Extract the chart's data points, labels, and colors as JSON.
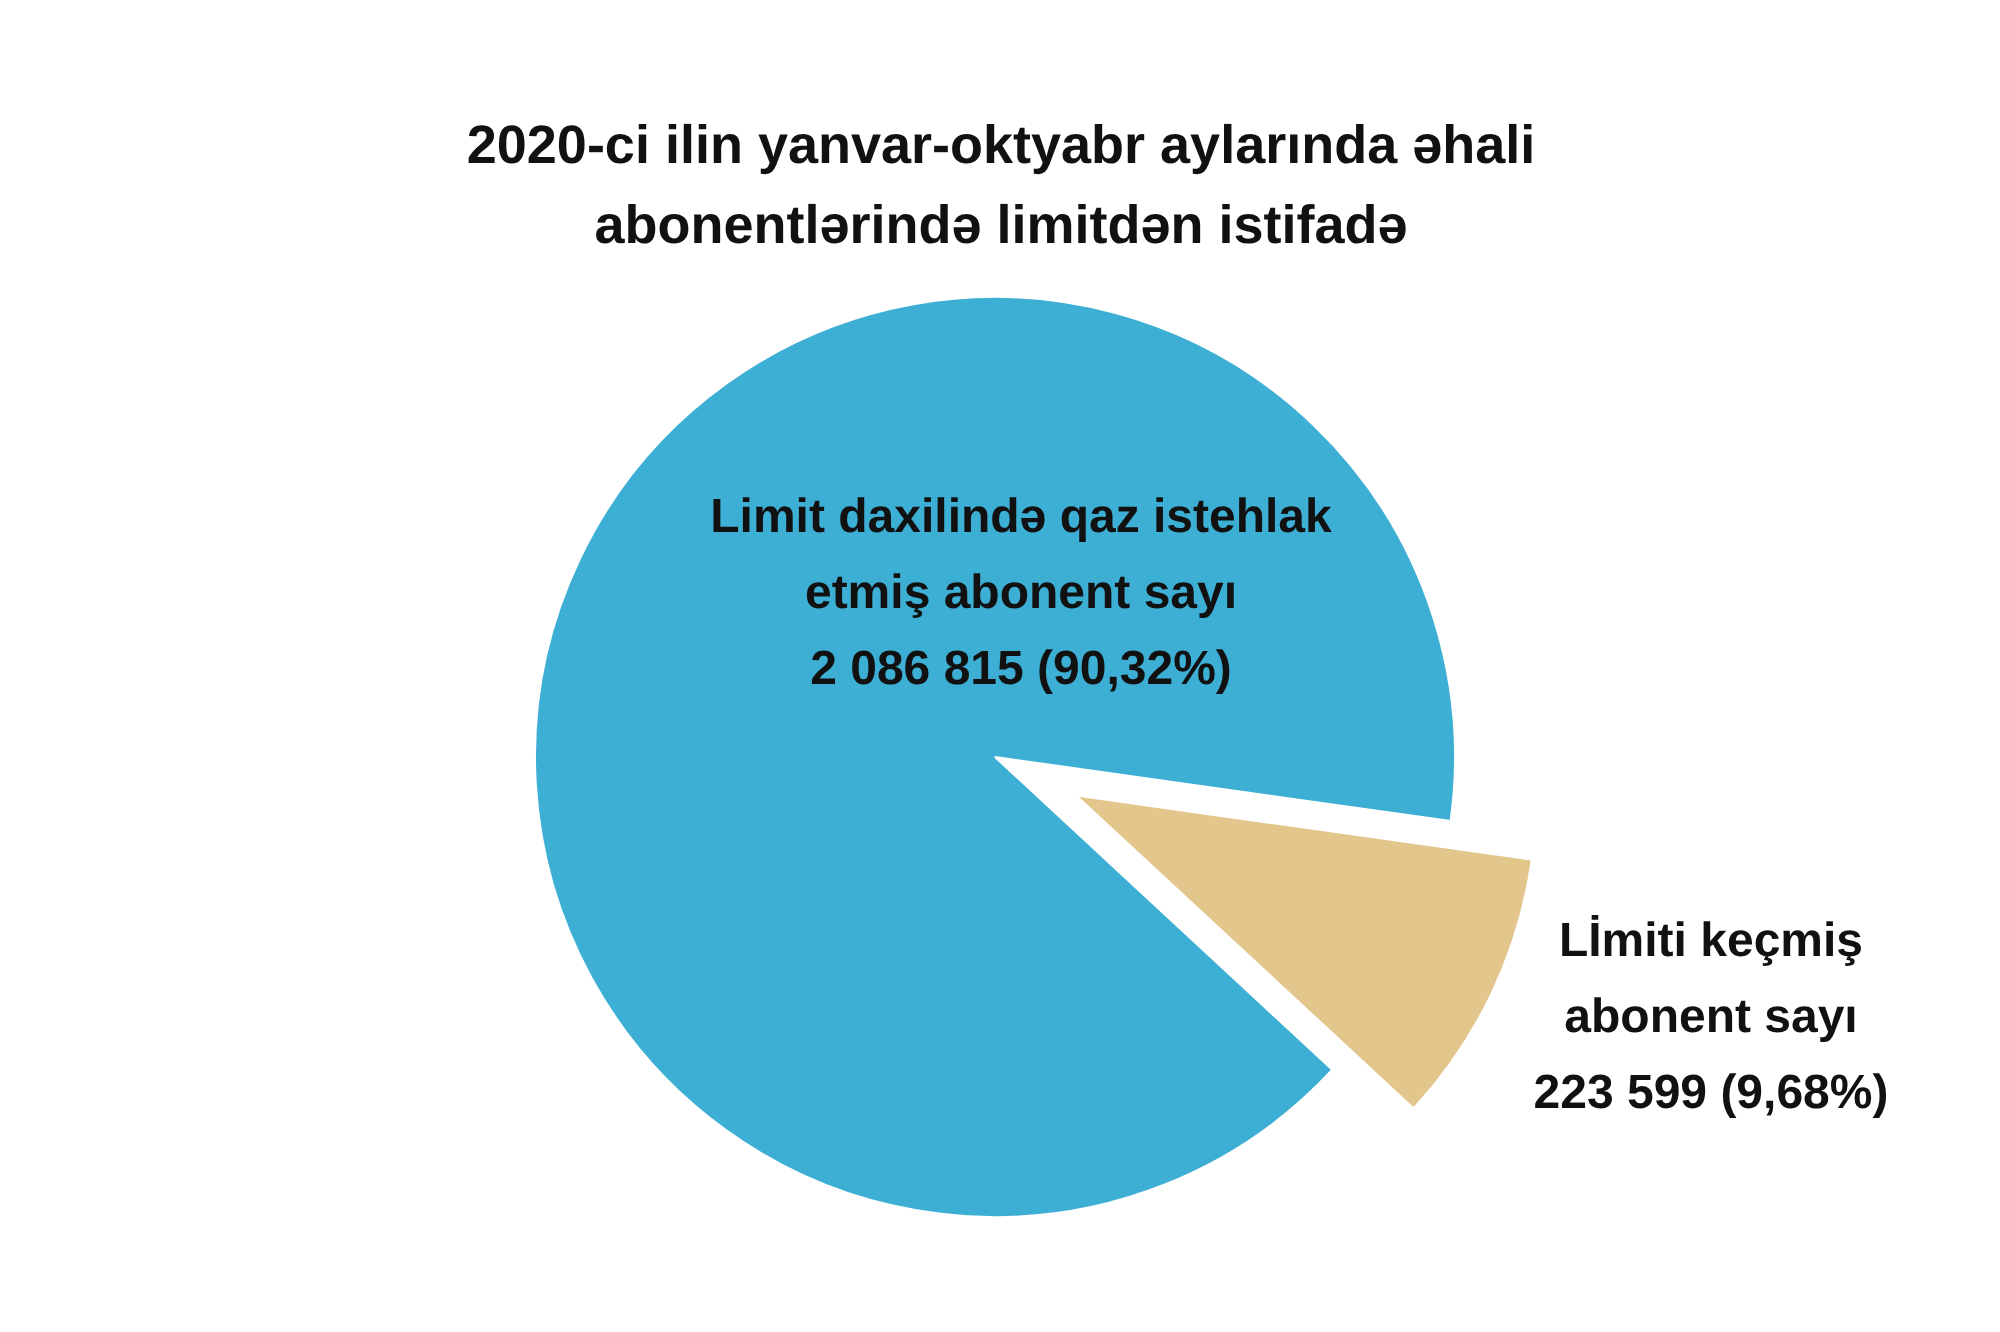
{
  "chart_data": {
    "type": "pie",
    "title": "2020-ci ilin yanvar-oktyabr aylarında əhali abonentlərində limitdən istifadə",
    "categories": [
      "Limit daxilində qaz istehlak etmiş abonent sayı",
      "Lİmiti keçmiş abonent sayı"
    ],
    "values": [
      2086815,
      223599
    ],
    "value_labels": [
      "2 086 815 (90,32%)",
      "223 599 (9,68%)"
    ],
    "colors": [
      "#3eafd4",
      "#e3c68c"
    ]
  }
}
